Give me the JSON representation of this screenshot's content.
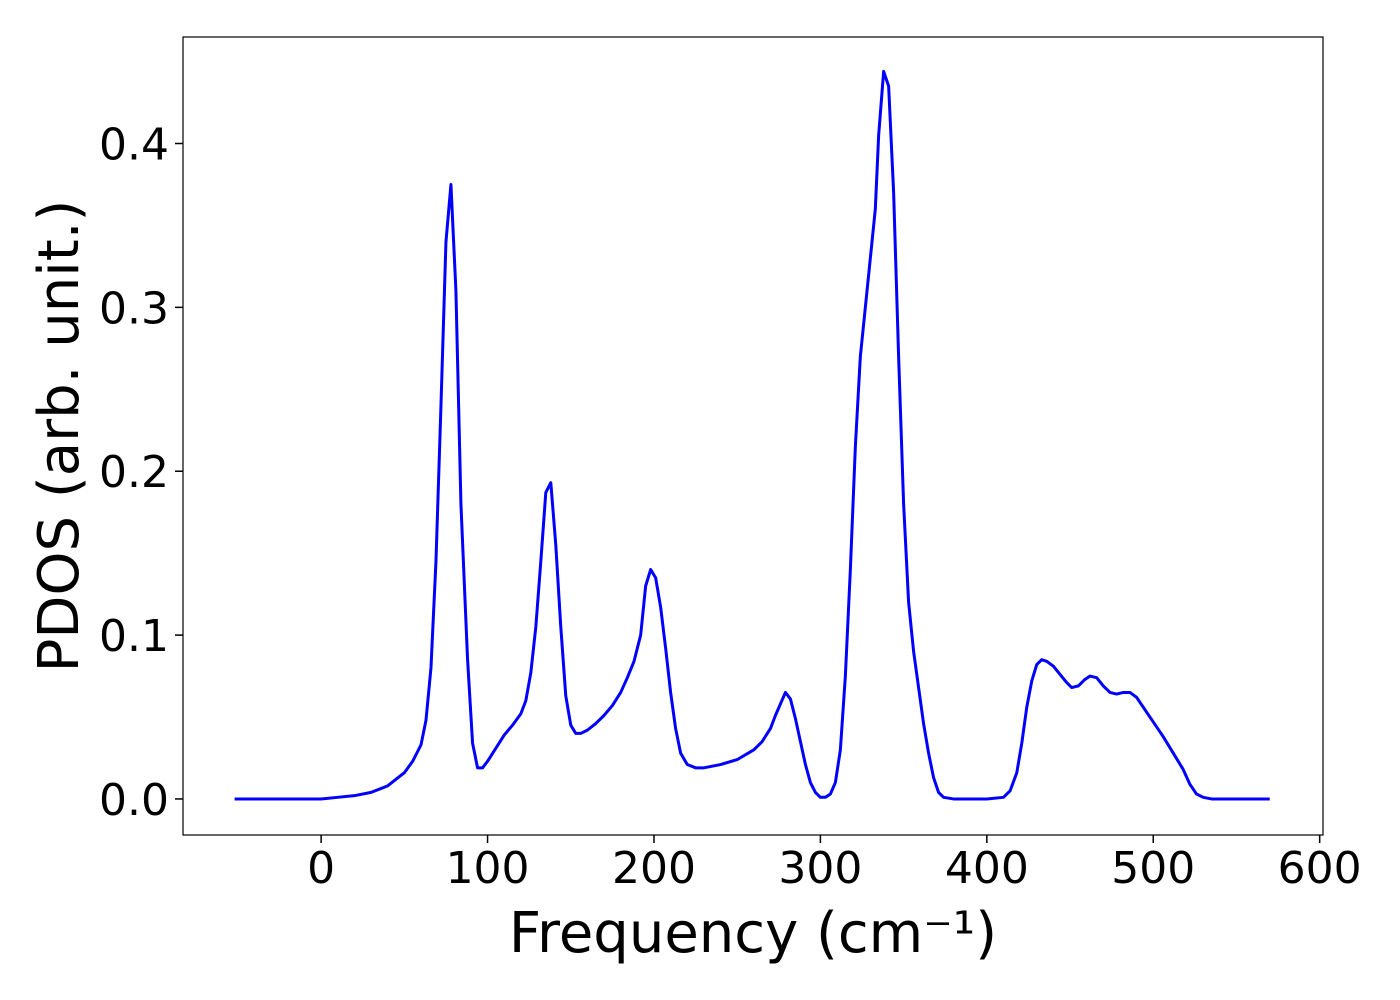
{
  "chart_data": {
    "type": "line",
    "xlabel": "Frequency (cm⁻¹)",
    "ylabel": "PDOS (arb. unit.)",
    "x": [
      -52,
      0,
      10,
      20,
      30,
      40,
      50,
      55,
      60,
      63,
      66,
      69,
      72,
      75,
      78,
      81,
      84,
      88,
      91,
      94,
      97,
      100,
      105,
      110,
      115,
      120,
      123,
      126,
      129,
      132,
      135,
      138,
      141,
      144,
      147,
      150,
      153,
      156,
      160,
      165,
      170,
      175,
      180,
      184,
      188,
      192,
      195,
      198,
      201,
      204,
      207,
      210,
      213,
      216,
      220,
      225,
      230,
      240,
      250,
      260,
      265,
      270,
      273,
      276,
      279,
      282,
      285,
      288,
      291,
      294,
      297,
      300,
      303,
      306,
      309,
      312,
      315,
      318,
      321,
      324,
      327,
      330,
      333,
      335,
      338,
      341,
      344,
      347,
      350,
      353,
      356,
      359,
      362,
      365,
      368,
      371,
      374,
      380,
      400,
      410,
      414,
      418,
      421,
      424,
      427,
      430,
      433,
      436,
      440,
      444,
      448,
      451,
      455,
      459,
      462,
      466,
      470,
      474,
      478,
      482,
      486,
      490,
      494,
      500,
      506,
      512,
      518,
      522,
      526,
      530,
      535,
      570
    ],
    "series": [
      {
        "color": "#0000ff",
        "values": [
          0,
          0,
          0.001,
          0.002,
          0.004,
          0.008,
          0.016,
          0.023,
          0.033,
          0.048,
          0.08,
          0.145,
          0.24,
          0.34,
          0.375,
          0.31,
          0.18,
          0.085,
          0.034,
          0.019,
          0.019,
          0.023,
          0.031,
          0.039,
          0.045,
          0.052,
          0.06,
          0.077,
          0.105,
          0.145,
          0.187,
          0.193,
          0.155,
          0.105,
          0.063,
          0.045,
          0.04,
          0.04,
          0.042,
          0.046,
          0.051,
          0.057,
          0.065,
          0.074,
          0.084,
          0.1,
          0.13,
          0.14,
          0.135,
          0.117,
          0.092,
          0.065,
          0.043,
          0.028,
          0.021,
          0.019,
          0.019,
          0.021,
          0.024,
          0.03,
          0.035,
          0.043,
          0.051,
          0.058,
          0.065,
          0.061,
          0.049,
          0.035,
          0.021,
          0.01,
          0.004,
          0.001,
          0.001,
          0.003,
          0.01,
          0.03,
          0.075,
          0.14,
          0.215,
          0.27,
          0.3,
          0.33,
          0.36,
          0.405,
          0.444,
          0.435,
          0.37,
          0.27,
          0.18,
          0.12,
          0.09,
          0.068,
          0.046,
          0.028,
          0.013,
          0.004,
          0.001,
          0,
          0,
          0.001,
          0.005,
          0.016,
          0.034,
          0.056,
          0.072,
          0.082,
          0.085,
          0.084,
          0.081,
          0.076,
          0.071,
          0.068,
          0.069,
          0.073,
          0.075,
          0.074,
          0.069,
          0.065,
          0.064,
          0.065,
          0.065,
          0.062,
          0.056,
          0.047,
          0.038,
          0.028,
          0.018,
          0.009,
          0.003,
          0.001,
          0,
          0
        ]
      }
    ],
    "xlim": [
      -83,
      602
    ],
    "ylim": [
      -0.022,
      0.465
    ],
    "xticks": [
      0,
      100,
      200,
      300,
      400,
      500,
      600
    ],
    "yticks": [
      {
        "value": 0,
        "label": "0.0"
      },
      0.1,
      0.2,
      0.3,
      0.4
    ],
    "grid": false
  }
}
